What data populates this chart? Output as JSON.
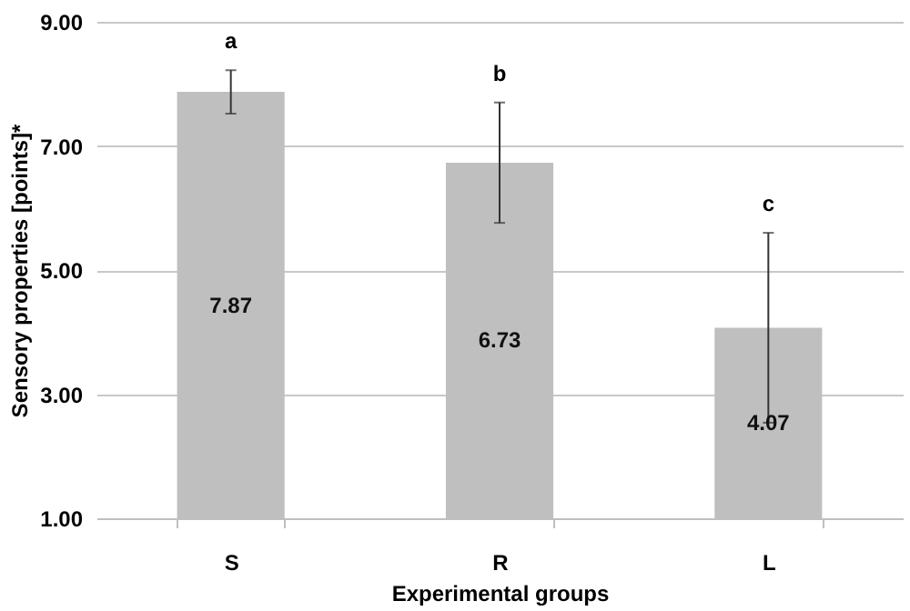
{
  "chart_data": {
    "type": "bar",
    "xlabel": "Experimental groups",
    "ylabel": "Sensory properties [points]*",
    "categories": [
      "S",
      "R",
      "L"
    ],
    "values": [
      7.87,
      6.73,
      4.07
    ],
    "errors": [
      0.35,
      0.97,
      1.53
    ],
    "color": "#bfbfbf",
    "data_labels": true,
    "ylim": [
      1,
      9
    ],
    "yticks": [
      {
        "value": 1,
        "label": "1.00"
      },
      {
        "value": 3,
        "label": "3.00"
      },
      {
        "value": 5,
        "label": "5.00"
      },
      {
        "value": 7,
        "label": "7.00"
      },
      {
        "value": 9,
        "label": "9.00"
      }
    ],
    "grid": "y",
    "annotations": [
      "a",
      "b",
      "c"
    ]
  }
}
